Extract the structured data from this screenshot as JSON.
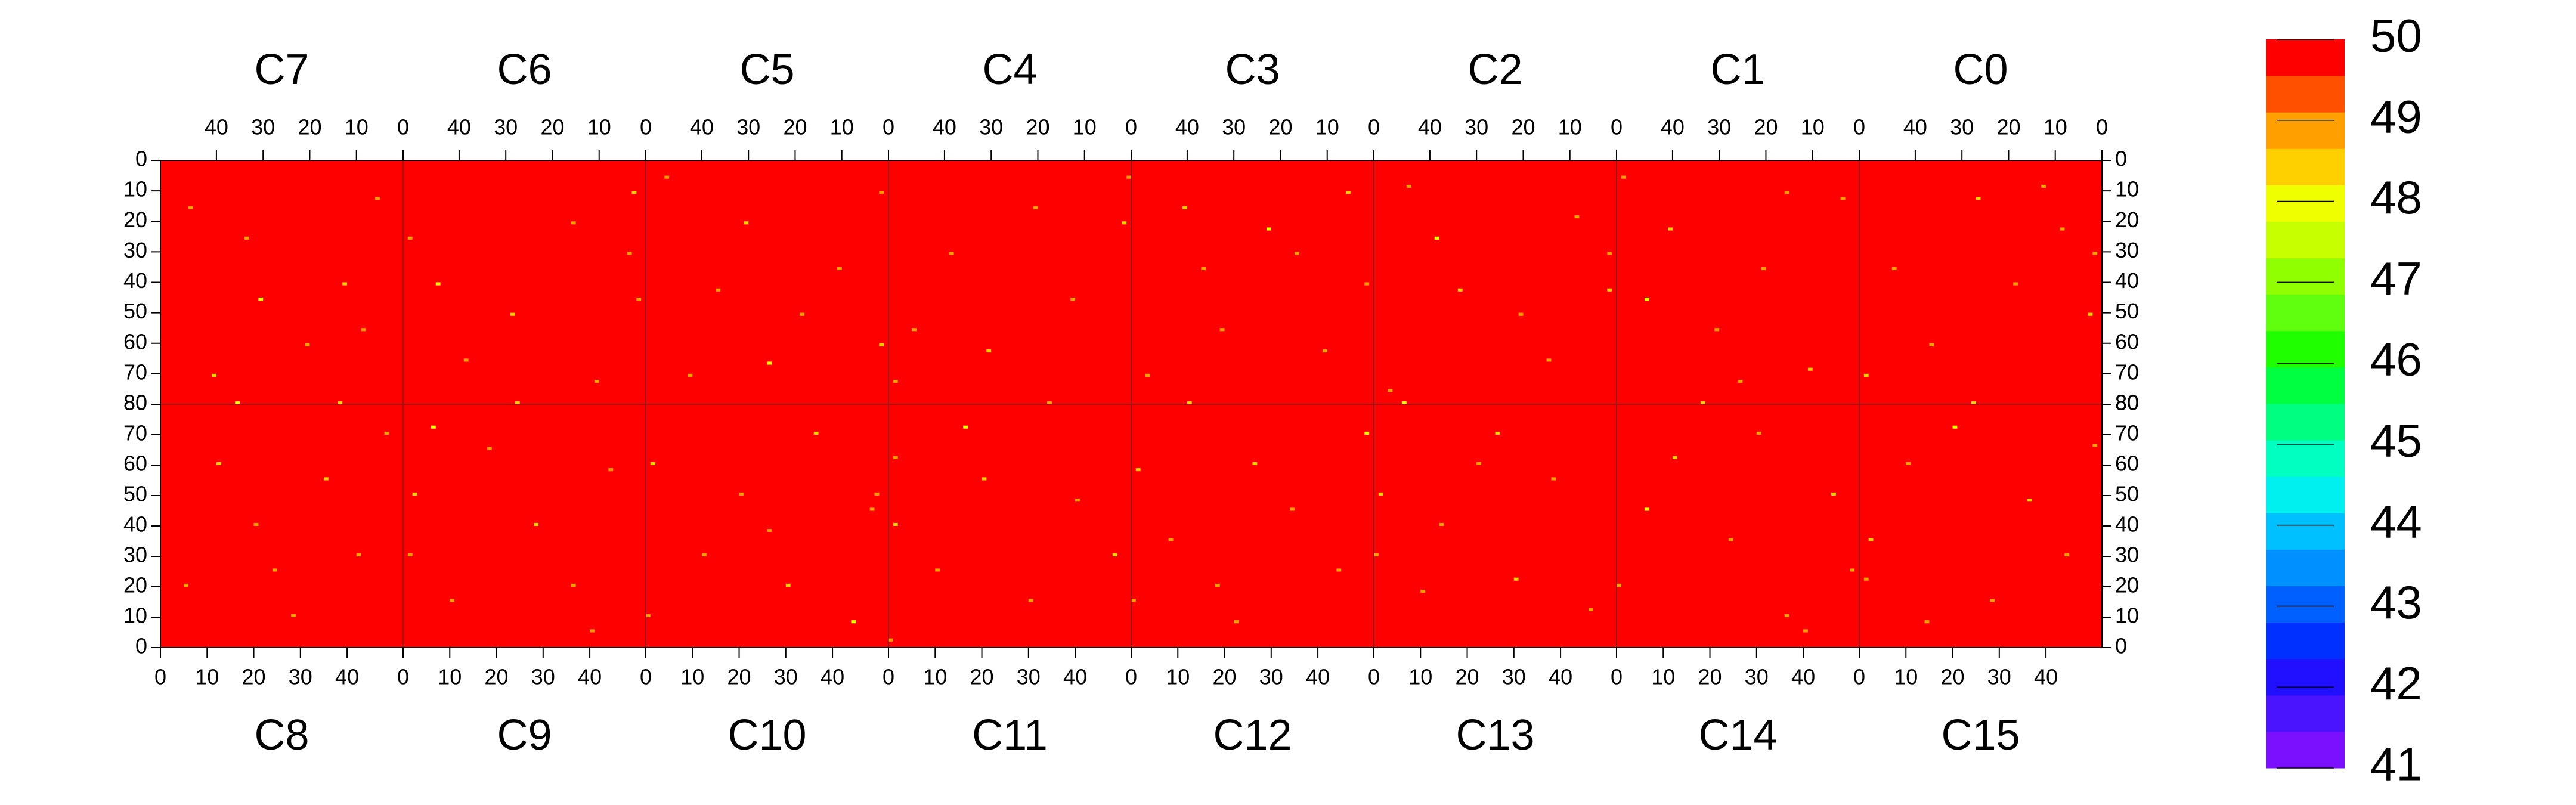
{
  "chart_data": {
    "type": "heatmap",
    "xlim": [
      0,
      52
    ],
    "xticks": [
      0,
      10,
      20,
      30,
      40
    ],
    "ylim": [
      0,
      80
    ],
    "yticks": [
      0,
      10,
      20,
      30,
      40,
      50,
      60,
      70,
      80
    ],
    "zlim": [
      41,
      50
    ],
    "zticks": [
      41,
      42,
      43,
      44,
      45,
      46,
      47,
      48,
      49,
      50
    ],
    "palette": [
      "#7a10ff",
      "#4a14ff",
      "#2010ff",
      "#0030ff",
      "#0060ff",
      "#0090ff",
      "#00c0ff",
      "#00f0f0",
      "#00ffc0",
      "#00ff80",
      "#00ff40",
      "#20ff00",
      "#60ff10",
      "#90ff00",
      "#c8ff00",
      "#f0ff00",
      "#ffd000",
      "#ffa000",
      "#ff5000",
      "#ff0000"
    ],
    "base_value": 50,
    "top": [
      {
        "name": "C7",
        "cells": [
          [
            5,
            12,
            48.8
          ],
          [
            12,
            40,
            48.4
          ],
          [
            20,
            60,
            48.8
          ],
          [
            33,
            25,
            48.8
          ],
          [
            40,
            70,
            48.4
          ],
          [
            48,
            80,
            48.8
          ],
          [
            25,
            80,
            48.4
          ],
          [
            8,
            55,
            48.8
          ],
          [
            30,
            45,
            47.8
          ],
          [
            45,
            15,
            48.8
          ]
        ]
      },
      {
        "name": "C6",
        "cells": [
          [
            2,
            10,
            48.4
          ],
          [
            3,
            30,
            48.8
          ],
          [
            15,
            20,
            48.8
          ],
          [
            28,
            50,
            48.4
          ],
          [
            38,
            65,
            48.8
          ],
          [
            50,
            25,
            48.8
          ],
          [
            22,
            80,
            48.4
          ],
          [
            44,
            40,
            47.8
          ],
          [
            10,
            72,
            48.8
          ],
          [
            1,
            45,
            48.8
          ]
        ]
      },
      {
        "name": "C5",
        "cells": [
          [
            1,
            10,
            48.8
          ],
          [
            1,
            60,
            48.4
          ],
          [
            10,
            35,
            48.8
          ],
          [
            18,
            50,
            48.8
          ],
          [
            30,
            20,
            48.4
          ],
          [
            42,
            70,
            48.8
          ],
          [
            47,
            5,
            48.8
          ],
          [
            25,
            66,
            47.8
          ],
          [
            36,
            42,
            48.8
          ],
          [
            50,
            80,
            48.4
          ]
        ]
      },
      {
        "name": "C4",
        "cells": [
          [
            0,
            5,
            48.8
          ],
          [
            1,
            20,
            48.4
          ],
          [
            12,
            45,
            48.8
          ],
          [
            20,
            15,
            48.8
          ],
          [
            30,
            62,
            48.4
          ],
          [
            38,
            30,
            48.8
          ],
          [
            46,
            55,
            48.8
          ],
          [
            6,
            80,
            48.4
          ],
          [
            26,
            80,
            47.8
          ],
          [
            50,
            72,
            48.8
          ]
        ]
      },
      {
        "name": "C3",
        "cells": [
          [
            1,
            40,
            48.8
          ],
          [
            5,
            10,
            48.4
          ],
          [
            16,
            30,
            48.8
          ],
          [
            22,
            22,
            47.8
          ],
          [
            32,
            55,
            48.8
          ],
          [
            40,
            15,
            48.4
          ],
          [
            48,
            70,
            48.8
          ],
          [
            28,
            80,
            48.4
          ],
          [
            10,
            62,
            48.8
          ],
          [
            36,
            35,
            48.8
          ]
        ]
      },
      {
        "name": "C2",
        "cells": [
          [
            1,
            30,
            48.8
          ],
          [
            1,
            42,
            48.4
          ],
          [
            8,
            18,
            48.8
          ],
          [
            20,
            50,
            48.8
          ],
          [
            33,
            42,
            48.4
          ],
          [
            44,
            8,
            48.8
          ],
          [
            48,
            75,
            48.8
          ],
          [
            26,
            80,
            48.4
          ],
          [
            14,
            65,
            48.8
          ],
          [
            38,
            25,
            47.8
          ]
        ]
      },
      {
        "name": "C1",
        "cells": [
          [
            50,
            5,
            48.8
          ],
          [
            40,
            22,
            48.4
          ],
          [
            30,
            55,
            48.8
          ],
          [
            20,
            35,
            48.8
          ],
          [
            10,
            68,
            48.4
          ],
          [
            3,
            12,
            48.8
          ],
          [
            35,
            80,
            48.4
          ],
          [
            15,
            10,
            48.8
          ],
          [
            45,
            45,
            47.8
          ],
          [
            25,
            72,
            48.8
          ]
        ]
      },
      {
        "name": "C0",
        "cells": [
          [
            1,
            30,
            48.8
          ],
          [
            2,
            50,
            48.4
          ],
          [
            8,
            22,
            48.8
          ],
          [
            18,
            40,
            48.8
          ],
          [
            26,
            12,
            48.4
          ],
          [
            36,
            60,
            48.8
          ],
          [
            44,
            35,
            48.8
          ],
          [
            50,
            70,
            48.4
          ],
          [
            30,
            80,
            47.8
          ],
          [
            12,
            8,
            48.8
          ]
        ]
      }
    ],
    "bottom": [
      {
        "name": "C8",
        "cells": [
          [
            5,
            20,
            48.8
          ],
          [
            12,
            60,
            48.4
          ],
          [
            20,
            40,
            48.8
          ],
          [
            28,
            10,
            48.8
          ],
          [
            35,
            55,
            48.4
          ],
          [
            42,
            30,
            48.8
          ],
          [
            48,
            70,
            48.8
          ],
          [
            38,
            80,
            48.4
          ],
          [
            16,
            80,
            47.8
          ],
          [
            24,
            25,
            48.8
          ]
        ]
      },
      {
        "name": "C9",
        "cells": [
          [
            1,
            30,
            48.8
          ],
          [
            2,
            50,
            48.4
          ],
          [
            10,
            15,
            48.8
          ],
          [
            18,
            65,
            48.8
          ],
          [
            28,
            40,
            48.4
          ],
          [
            36,
            20,
            48.8
          ],
          [
            44,
            58,
            48.8
          ],
          [
            24,
            80,
            48.4
          ],
          [
            6,
            72,
            47.8
          ],
          [
            40,
            5,
            48.8
          ]
        ]
      },
      {
        "name": "C10",
        "cells": [
          [
            0,
            10,
            48.8
          ],
          [
            1,
            60,
            48.4
          ],
          [
            12,
            30,
            48.8
          ],
          [
            20,
            50,
            48.8
          ],
          [
            30,
            20,
            48.4
          ],
          [
            48,
            45,
            48.8
          ],
          [
            49,
            50,
            48.8
          ],
          [
            36,
            70,
            48.4
          ],
          [
            44,
            8,
            47.8
          ],
          [
            26,
            38,
            48.8
          ]
        ]
      },
      {
        "name": "C11",
        "cells": [
          [
            0,
            2,
            48.8
          ],
          [
            1,
            40,
            48.4
          ],
          [
            1,
            62,
            48.8
          ],
          [
            10,
            25,
            48.8
          ],
          [
            20,
            55,
            48.4
          ],
          [
            30,
            15,
            48.8
          ],
          [
            40,
            48,
            48.8
          ],
          [
            48,
            30,
            48.4
          ],
          [
            16,
            72,
            47.8
          ],
          [
            34,
            80,
            48.8
          ]
        ]
      },
      {
        "name": "C12",
        "cells": [
          [
            0,
            15,
            48.8
          ],
          [
            1,
            58,
            48.4
          ],
          [
            8,
            35,
            48.8
          ],
          [
            18,
            20,
            48.8
          ],
          [
            26,
            60,
            48.4
          ],
          [
            34,
            45,
            48.8
          ],
          [
            44,
            25,
            48.8
          ],
          [
            12,
            80,
            48.4
          ],
          [
            50,
            70,
            47.8
          ],
          [
            22,
            8,
            48.8
          ]
        ]
      },
      {
        "name": "C13",
        "cells": [
          [
            0,
            30,
            48.8
          ],
          [
            1,
            50,
            48.4
          ],
          [
            6,
            80,
            47.8
          ],
          [
            14,
            40,
            48.8
          ],
          [
            22,
            60,
            48.8
          ],
          [
            30,
            22,
            48.4
          ],
          [
            38,
            55,
            48.8
          ],
          [
            46,
            12,
            48.8
          ],
          [
            26,
            70,
            48.4
          ],
          [
            10,
            18,
            48.8
          ]
        ]
      },
      {
        "name": "C14",
        "cells": [
          [
            0,
            20,
            48.8
          ],
          [
            12,
            62,
            48.4
          ],
          [
            24,
            35,
            48.8
          ],
          [
            36,
            10,
            48.8
          ],
          [
            46,
            50,
            48.4
          ],
          [
            50,
            25,
            48.8
          ],
          [
            18,
            80,
            48.4
          ],
          [
            30,
            70,
            48.8
          ],
          [
            6,
            45,
            47.8
          ],
          [
            40,
            5,
            48.8
          ]
        ]
      },
      {
        "name": "C15",
        "cells": [
          [
            1,
            22,
            48.8
          ],
          [
            2,
            35,
            48.4
          ],
          [
            10,
            60,
            48.8
          ],
          [
            20,
            72,
            47.8
          ],
          [
            28,
            15,
            48.8
          ],
          [
            36,
            48,
            48.4
          ],
          [
            44,
            30,
            48.8
          ],
          [
            50,
            66,
            48.8
          ],
          [
            24,
            80,
            48.4
          ],
          [
            14,
            8,
            48.8
          ]
        ]
      }
    ]
  }
}
